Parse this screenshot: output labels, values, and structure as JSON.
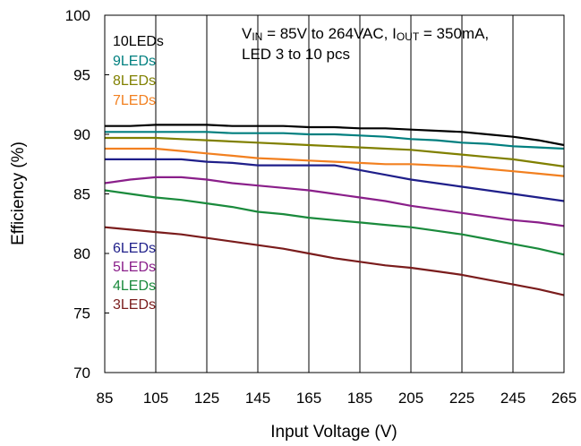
{
  "chart_data": {
    "type": "line",
    "title": "",
    "xlabel": "Input Voltage (V)",
    "ylabel": "Efficiency (%)",
    "xlim": [
      85,
      265
    ],
    "ylim": [
      70,
      100
    ],
    "xticks": [
      "85",
      "105",
      "125",
      "145",
      "165",
      "185",
      "205",
      "225",
      "245",
      "265"
    ],
    "yticks": [
      "70",
      "75",
      "80",
      "85",
      "90",
      "95",
      "100"
    ],
    "grid": "vertical only",
    "annotation": {
      "line1": {
        "v": "V",
        "v_sub": "IN",
        "mid": " = 85V to 264VAC, I",
        "i_sub": "OUT",
        "end": " = 350mA,"
      },
      "line2": "LED 3 to 10 pcs"
    },
    "series": [
      {
        "name": "10LEDs",
        "color": "#000000",
        "x": [
          85,
          95,
          105,
          115,
          125,
          135,
          145,
          155,
          165,
          175,
          185,
          195,
          205,
          215,
          225,
          235,
          245,
          255,
          265
        ],
        "y": [
          90.7,
          90.7,
          90.8,
          90.8,
          90.8,
          90.7,
          90.7,
          90.7,
          90.6,
          90.6,
          90.5,
          90.5,
          90.4,
          90.3,
          90.2,
          90.0,
          89.8,
          89.5,
          89.1
        ]
      },
      {
        "name": "9LEDs",
        "color": "#007f7f",
        "x": [
          85,
          95,
          105,
          115,
          125,
          135,
          145,
          155,
          165,
          175,
          185,
          195,
          205,
          215,
          225,
          235,
          245,
          255,
          265
        ],
        "y": [
          90.2,
          90.2,
          90.2,
          90.2,
          90.2,
          90.1,
          90.1,
          90.1,
          90.0,
          90.0,
          89.9,
          89.8,
          89.6,
          89.5,
          89.3,
          89.2,
          89.0,
          88.9,
          88.8
        ]
      },
      {
        "name": "8LEDs",
        "color": "#808000",
        "x": [
          85,
          95,
          105,
          115,
          125,
          135,
          145,
          155,
          165,
          175,
          185,
          195,
          205,
          215,
          225,
          235,
          245,
          255,
          265
        ],
        "y": [
          89.7,
          89.7,
          89.7,
          89.6,
          89.5,
          89.4,
          89.3,
          89.2,
          89.1,
          89.0,
          88.9,
          88.8,
          88.7,
          88.5,
          88.3,
          88.1,
          87.9,
          87.6,
          87.3
        ]
      },
      {
        "name": "7LEDs",
        "color": "#f28020",
        "x": [
          85,
          95,
          105,
          115,
          125,
          135,
          145,
          155,
          165,
          175,
          185,
          195,
          205,
          215,
          225,
          235,
          245,
          255,
          265
        ],
        "y": [
          88.8,
          88.8,
          88.8,
          88.6,
          88.4,
          88.2,
          88.0,
          87.9,
          87.8,
          87.7,
          87.6,
          87.5,
          87.5,
          87.4,
          87.3,
          87.1,
          86.9,
          86.7,
          86.5
        ]
      },
      {
        "name": "6LEDs",
        "color": "#1f1f8a",
        "x": [
          85,
          95,
          105,
          115,
          125,
          135,
          145,
          155,
          165,
          175,
          185,
          195,
          205,
          215,
          225,
          235,
          245,
          255,
          265
        ],
        "y": [
          87.9,
          87.9,
          87.9,
          87.9,
          87.7,
          87.6,
          87.4,
          87.4,
          87.4,
          87.4,
          87.0,
          86.6,
          86.2,
          85.9,
          85.6,
          85.3,
          85.0,
          84.7,
          84.4
        ]
      },
      {
        "name": "5LEDs",
        "color": "#8a1f8a",
        "x": [
          85,
          95,
          105,
          115,
          125,
          135,
          145,
          155,
          165,
          175,
          185,
          195,
          205,
          215,
          225,
          235,
          245,
          255,
          265
        ],
        "y": [
          85.9,
          86.2,
          86.4,
          86.4,
          86.2,
          85.9,
          85.7,
          85.5,
          85.3,
          85.0,
          84.7,
          84.4,
          84.0,
          83.7,
          83.4,
          83.1,
          82.8,
          82.6,
          82.3
        ]
      },
      {
        "name": "4LEDs",
        "color": "#1a8a3c",
        "x": [
          85,
          95,
          105,
          115,
          125,
          135,
          145,
          155,
          165,
          175,
          185,
          195,
          205,
          215,
          225,
          235,
          245,
          255,
          265
        ],
        "y": [
          85.3,
          85.0,
          84.7,
          84.5,
          84.2,
          83.9,
          83.5,
          83.3,
          83.0,
          82.8,
          82.6,
          82.4,
          82.2,
          81.9,
          81.6,
          81.2,
          80.8,
          80.4,
          79.9
        ]
      },
      {
        "name": "3LEDs",
        "color": "#7a1c1c",
        "x": [
          85,
          95,
          105,
          115,
          125,
          135,
          145,
          155,
          165,
          175,
          185,
          195,
          205,
          215,
          225,
          235,
          245,
          255,
          265
        ],
        "y": [
          82.2,
          82.0,
          81.8,
          81.6,
          81.3,
          81.0,
          80.7,
          80.4,
          80.0,
          79.6,
          79.3,
          79.0,
          78.8,
          78.5,
          78.2,
          77.8,
          77.4,
          77.0,
          76.5
        ]
      }
    ]
  }
}
